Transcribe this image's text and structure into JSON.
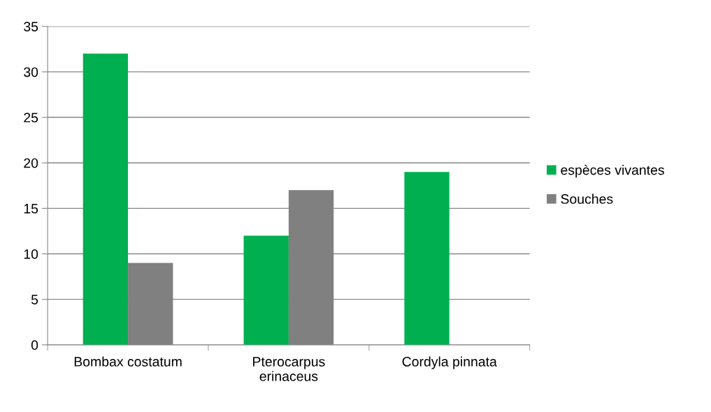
{
  "chart_data": {
    "type": "bar",
    "categories": [
      "Bombax costatum",
      "Pterocarpus\nerinaceus",
      "Cordyla pinnata"
    ],
    "series": [
      {
        "name": "espèces vivantes",
        "color": "#00b050",
        "values": [
          32,
          12,
          19
        ]
      },
      {
        "name": "Souches",
        "color": "#808080",
        "values": [
          9,
          17,
          0
        ]
      }
    ],
    "ylim": [
      0,
      35
    ],
    "yticks": [
      0,
      5,
      10,
      15,
      20,
      25,
      30,
      35
    ],
    "grid": "y",
    "legend": "right"
  }
}
